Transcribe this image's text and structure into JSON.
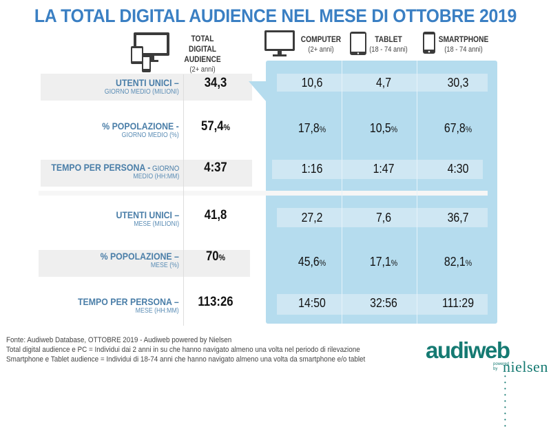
{
  "title": "LA TOTAL DIGITAL AUDIENCE NEL MESE DI OTTOBRE 2019",
  "columns": {
    "total": {
      "label_lines": [
        "TOTAL DIGITAL",
        "AUDIENCE"
      ],
      "sub": "(2+ anni)",
      "icon": "multi-device-icon"
    },
    "computer": {
      "label": "COMPUTER",
      "sub": "(2+ anni)",
      "icon": "monitor-icon"
    },
    "tablet": {
      "label": "TABLET",
      "sub": "(18 - 74 anni)",
      "icon": "tablet-icon"
    },
    "smartphone": {
      "label": "SMARTPHONE",
      "sub": "(18 - 74 anni)",
      "icon": "smartphone-icon"
    }
  },
  "rows": [
    {
      "label": "UTENTI UNICI –",
      "sublabel": "GIORNO MEDIO (MILIONI)",
      "total": "34,3",
      "total_pct": "",
      "computer": "10,6",
      "tablet": "4,7",
      "smartphone": "30,3",
      "pct": false
    },
    {
      "label": "% POPOLAZIONE -",
      "sublabel": "GIORNO MEDIO (%)",
      "total": "57,4",
      "total_pct": "%",
      "computer": "17,8",
      "tablet": "10,5",
      "smartphone": "67,8",
      "pct": true
    },
    {
      "label": "TEMPO PER PERSONA -",
      "label_suffix": " GIORNO",
      "sublabel": "MEDIO (HH:MM)",
      "total": "4:37",
      "total_pct": "",
      "computer": "1:16",
      "tablet": "1:47",
      "smartphone": "4:30",
      "pct": false
    },
    {
      "label": "UTENTI UNICI –",
      "sublabel": "MESE (MILIONI)",
      "total": "41,8",
      "total_pct": "",
      "computer": "27,2",
      "tablet": "7,6",
      "smartphone": "36,7",
      "pct": false
    },
    {
      "label": "% POPOLAZIONE –",
      "sublabel": "MESE (%)",
      "total": "70",
      "total_pct": "%",
      "computer": "45,6",
      "tablet": "17,1",
      "smartphone": "82,1",
      "pct": true
    },
    {
      "label": "TEMPO PER PERSONA –",
      "sublabel": "MESE (HH:MM)",
      "total": "113:26",
      "total_pct": "",
      "computer": "14:50",
      "tablet": "32:56",
      "smartphone": "111:29",
      "pct": false
    }
  ],
  "pct_sign": "%",
  "footer": [
    "Fonte: Audiweb Database, OTTOBRE 2019 - Audiweb powered by Nielsen",
    "Total digital audience e PC = Individui dai 2 anni in su che hanno navigato almeno una volta nel periodo di rilevazione",
    "Smartphone e Tablet audience = Individui di 18-74 anni che hanno navigato almeno una volta da smartphone e/o tablet"
  ],
  "logo": {
    "brand": "audiweb",
    "powered": "powered",
    "by": "by",
    "partner": "nielsen",
    "dots": "• • • • • • • • •"
  },
  "colors": {
    "title": "#3a7fc3",
    "label": "#4a7ea8",
    "panel": "#b5dcee",
    "logo": "#157a72"
  }
}
